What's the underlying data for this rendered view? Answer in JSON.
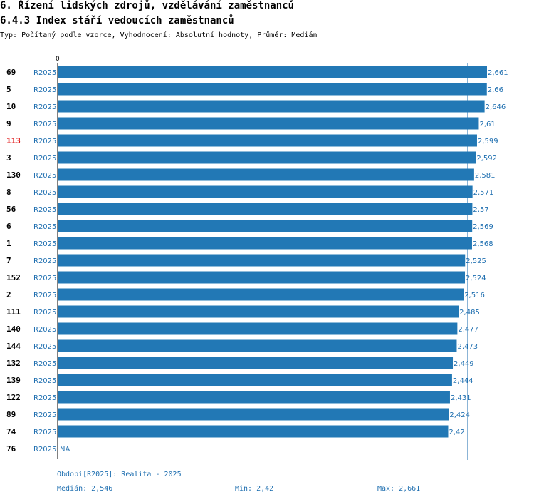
{
  "header": {
    "section_title": "6. Řízení lidských zdrojů, vzdělávání zaměstnanců",
    "indicator_title": "6.4.3 Index stáří vedoucích zaměstnanců",
    "subtitle": "Typ: Počítaný podle vzorce, Vyhodnocení: Absolutní hodnoty, Průměr: Medián"
  },
  "colors": {
    "bar": "#2278b5",
    "label": "#1f6fb0",
    "highlight": "#e01010"
  },
  "chart_data": {
    "type": "bar",
    "orientation": "horizontal",
    "axis_zero_label": "0",
    "xlim": [
      0,
      2.661
    ],
    "reference_line": 2.546,
    "rows": [
      {
        "id": "69",
        "period": "R2025",
        "value": 2.661,
        "label": "2,661"
      },
      {
        "id": "5",
        "period": "R2025",
        "value": 2.66,
        "label": "2,66"
      },
      {
        "id": "10",
        "period": "R2025",
        "value": 2.646,
        "label": "2,646"
      },
      {
        "id": "9",
        "period": "R2025",
        "value": 2.61,
        "label": "2,61"
      },
      {
        "id": "113",
        "period": "R2025",
        "value": 2.599,
        "label": "2,599",
        "highlight": true
      },
      {
        "id": "3",
        "period": "R2025",
        "value": 2.592,
        "label": "2,592"
      },
      {
        "id": "130",
        "period": "R2025",
        "value": 2.581,
        "label": "2,581"
      },
      {
        "id": "8",
        "period": "R2025",
        "value": 2.571,
        "label": "2,571"
      },
      {
        "id": "56",
        "period": "R2025",
        "value": 2.57,
        "label": "2,57"
      },
      {
        "id": "6",
        "period": "R2025",
        "value": 2.569,
        "label": "2,569"
      },
      {
        "id": "1",
        "period": "R2025",
        "value": 2.568,
        "label": "2,568"
      },
      {
        "id": "7",
        "period": "R2025",
        "value": 2.525,
        "label": "2,525"
      },
      {
        "id": "152",
        "period": "R2025",
        "value": 2.524,
        "label": "2,524"
      },
      {
        "id": "2",
        "period": "R2025",
        "value": 2.516,
        "label": "2,516"
      },
      {
        "id": "111",
        "period": "R2025",
        "value": 2.485,
        "label": "2,485"
      },
      {
        "id": "140",
        "period": "R2025",
        "value": 2.477,
        "label": "2,477"
      },
      {
        "id": "144",
        "period": "R2025",
        "value": 2.473,
        "label": "2,473"
      },
      {
        "id": "132",
        "period": "R2025",
        "value": 2.449,
        "label": "2,449"
      },
      {
        "id": "139",
        "period": "R2025",
        "value": 2.444,
        "label": "2,444"
      },
      {
        "id": "122",
        "period": "R2025",
        "value": 2.431,
        "label": "2,431"
      },
      {
        "id": "89",
        "period": "R2025",
        "value": 2.424,
        "label": "2,424"
      },
      {
        "id": "74",
        "period": "R2025",
        "value": 2.42,
        "label": "2,42"
      },
      {
        "id": "76",
        "period": "R2025",
        "value": null,
        "label": "NA"
      }
    ]
  },
  "footer": {
    "period_note": "Období[R2025]: Realita - 2025",
    "median": "Medián: 2,546",
    "min": "Min: 2,42",
    "max": "Max: 2,661"
  }
}
